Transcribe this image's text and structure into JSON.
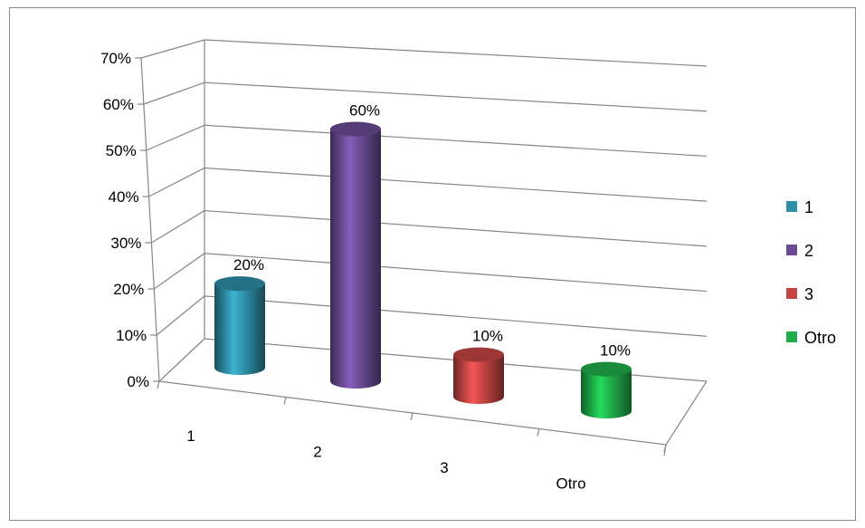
{
  "chart_data": {
    "type": "bar",
    "style": "3d-cylinder",
    "categories": [
      "1",
      "2",
      "3",
      "Otro"
    ],
    "values": [
      20,
      60,
      10,
      10
    ],
    "data_labels": [
      "20%",
      "60%",
      "10%",
      "10%"
    ],
    "colors": [
      "#2e8fa8",
      "#6a4b94",
      "#c44543",
      "#1fae4a"
    ],
    "ylim": [
      0,
      70
    ],
    "y_ticks": [
      0,
      10,
      20,
      30,
      40,
      50,
      60,
      70
    ],
    "y_tick_labels": [
      "0%",
      "10%",
      "20%",
      "30%",
      "40%",
      "50%",
      "60%",
      "70%"
    ],
    "grid": true,
    "legend": {
      "placement": "right",
      "entries": [
        "1",
        "2",
        "3",
        "Otro"
      ]
    },
    "title": "",
    "xlabel": "",
    "ylabel": ""
  }
}
